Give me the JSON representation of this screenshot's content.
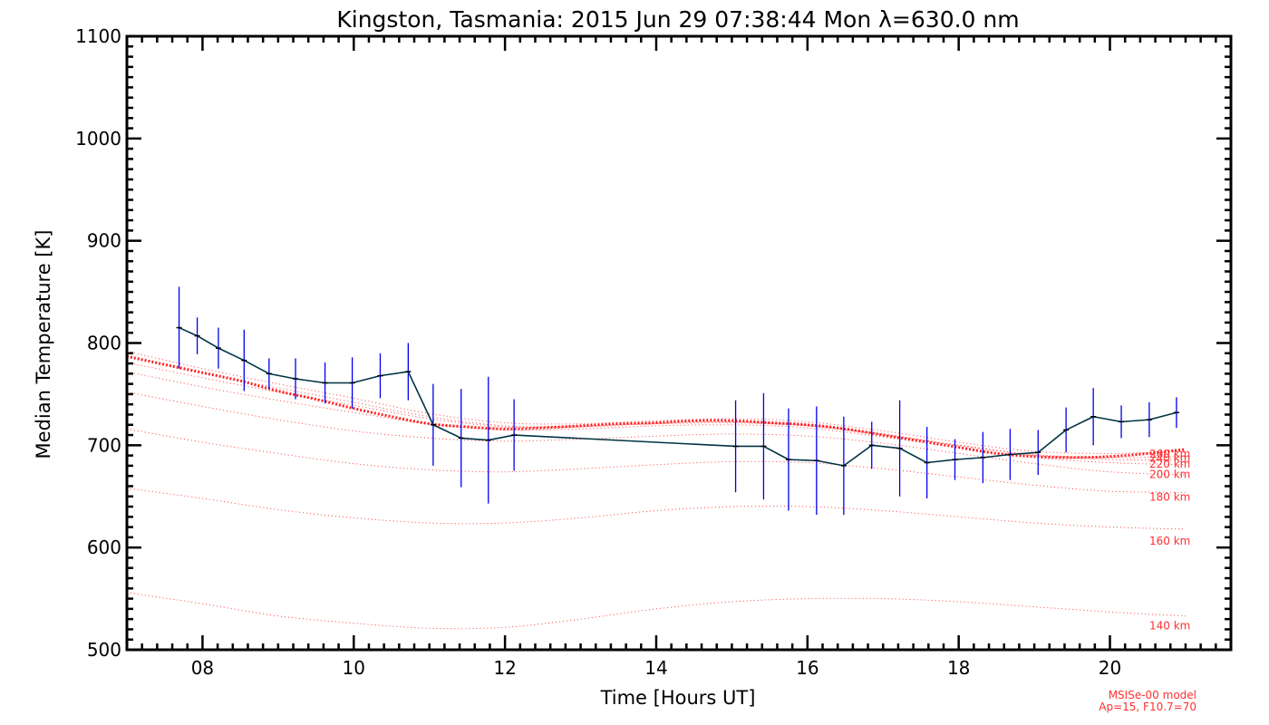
{
  "chart_data": {
    "type": "line",
    "title": "Kingston, Tasmania: 2015 Jun 29 07:38:44 Mon λ=630.0 nm",
    "xlabel": "Time [Hours UT]",
    "ylabel": "Median Temperature [K]",
    "xlim": [
      7.0,
      21.6
    ],
    "ylim": [
      500,
      1100
    ],
    "x_ticks": [
      8,
      10,
      12,
      14,
      16,
      18,
      20
    ],
    "x_tick_labels": [
      "08",
      "10",
      "12",
      "14",
      "16",
      "18",
      "20"
    ],
    "y_ticks": [
      500,
      600,
      700,
      800,
      900,
      1000,
      1100
    ],
    "y_tick_labels": [
      "500",
      "600",
      "700",
      "800",
      "900",
      "1000",
      "1100"
    ],
    "series": [
      {
        "kind": "measurement",
        "color": "#003344",
        "errorbar_color": "#0000ee",
        "points": [
          {
            "x": 7.69,
            "y": 815,
            "err": 40
          },
          {
            "x": 7.93,
            "y": 807,
            "err": 18
          },
          {
            "x": 8.21,
            "y": 795,
            "err": 20
          },
          {
            "x": 8.55,
            "y": 783,
            "err": 30
          },
          {
            "x": 8.88,
            "y": 770,
            "err": 15
          },
          {
            "x": 9.23,
            "y": 765,
            "err": 20
          },
          {
            "x": 9.62,
            "y": 761,
            "err": 20
          },
          {
            "x": 9.98,
            "y": 761,
            "err": 25
          },
          {
            "x": 10.35,
            "y": 768,
            "err": 22
          },
          {
            "x": 10.72,
            "y": 772,
            "err": 28
          },
          {
            "x": 11.05,
            "y": 720,
            "err": 40
          },
          {
            "x": 11.42,
            "y": 707,
            "err": 48
          },
          {
            "x": 11.78,
            "y": 705,
            "err": 62
          },
          {
            "x": 12.12,
            "y": 710,
            "err": 35
          },
          {
            "x": 15.05,
            "y": 699,
            "err": 45
          },
          {
            "x": 15.42,
            "y": 699,
            "err": 52
          },
          {
            "x": 15.75,
            "y": 686,
            "err": 50
          },
          {
            "x": 16.12,
            "y": 685,
            "err": 53
          },
          {
            "x": 16.48,
            "y": 680,
            "err": 48
          },
          {
            "x": 16.85,
            "y": 700,
            "err": 23
          },
          {
            "x": 17.22,
            "y": 697,
            "err": 47
          },
          {
            "x": 17.58,
            "y": 683,
            "err": 35
          },
          {
            "x": 17.95,
            "y": 686,
            "err": 20
          },
          {
            "x": 18.32,
            "y": 688,
            "err": 25
          },
          {
            "x": 18.68,
            "y": 691,
            "err": 25
          },
          {
            "x": 19.05,
            "y": 693,
            "err": 22
          },
          {
            "x": 19.42,
            "y": 715,
            "err": 22
          },
          {
            "x": 19.78,
            "y": 728,
            "err": 28
          },
          {
            "x": 20.15,
            "y": 723,
            "err": 16
          },
          {
            "x": 20.52,
            "y": 725,
            "err": 17
          },
          {
            "x": 20.88,
            "y": 732,
            "err": 15
          }
        ]
      }
    ],
    "model_curves": [
      {
        "label": "140 km",
        "label_y": 520,
        "points": [
          [
            7,
            556
          ],
          [
            8,
            545
          ],
          [
            9,
            533
          ],
          [
            10,
            526
          ],
          [
            11,
            521
          ],
          [
            12,
            522
          ],
          [
            13,
            530
          ],
          [
            14,
            540
          ],
          [
            15,
            547
          ],
          [
            16,
            550
          ],
          [
            17,
            550
          ],
          [
            18,
            547
          ],
          [
            19,
            542
          ],
          [
            20,
            537
          ],
          [
            21,
            533
          ]
        ]
      },
      {
        "label": "160 km",
        "label_y": 603,
        "points": [
          [
            7,
            658
          ],
          [
            8,
            648
          ],
          [
            9,
            637
          ],
          [
            10,
            629
          ],
          [
            11,
            624
          ],
          [
            12,
            624
          ],
          [
            13,
            629
          ],
          [
            14,
            636
          ],
          [
            15,
            640
          ],
          [
            16,
            640
          ],
          [
            17,
            636
          ],
          [
            18,
            630
          ],
          [
            19,
            624
          ],
          [
            20,
            620
          ],
          [
            21,
            618
          ]
        ]
      },
      {
        "label": "180 km",
        "label_y": 646,
        "points": [
          [
            7,
            716
          ],
          [
            8,
            703
          ],
          [
            9,
            692
          ],
          [
            10,
            682
          ],
          [
            11,
            676
          ],
          [
            12,
            674
          ],
          [
            13,
            677
          ],
          [
            14,
            681
          ],
          [
            15,
            684
          ],
          [
            16,
            683
          ],
          [
            17,
            677
          ],
          [
            18,
            669
          ],
          [
            19,
            661
          ],
          [
            20,
            655
          ],
          [
            21,
            654
          ]
        ]
      },
      {
        "label": "200 km",
        "label_y": 668,
        "points": [
          [
            7,
            752
          ],
          [
            8,
            738
          ],
          [
            9,
            725
          ],
          [
            10,
            714
          ],
          [
            11,
            707
          ],
          [
            12,
            704
          ],
          [
            13,
            706
          ],
          [
            14,
            709
          ],
          [
            15,
            711
          ],
          [
            16,
            709
          ],
          [
            17,
            702
          ],
          [
            18,
            692
          ],
          [
            19,
            682
          ],
          [
            20,
            674
          ],
          [
            21,
            671
          ]
        ]
      },
      {
        "label": "220 km",
        "label_y": 678,
        "points": [
          [
            7,
            772
          ],
          [
            8,
            757
          ],
          [
            9,
            744
          ],
          [
            10,
            732
          ],
          [
            11,
            721
          ],
          [
            12,
            715
          ],
          [
            13,
            716
          ],
          [
            14,
            719
          ],
          [
            15,
            720
          ],
          [
            16,
            717
          ],
          [
            17,
            708
          ],
          [
            18,
            698
          ],
          [
            19,
            688
          ],
          [
            20,
            683
          ],
          [
            21,
            681
          ]
        ]
      },
      {
        "label": "240 km",
        "label_y": 684,
        "points": [
          [
            7,
            781
          ],
          [
            8,
            766
          ],
          [
            9,
            752
          ],
          [
            10,
            739
          ],
          [
            11,
            726
          ],
          [
            12,
            718
          ],
          [
            13,
            718
          ],
          [
            14,
            721
          ],
          [
            15,
            722
          ],
          [
            16,
            719
          ],
          [
            17,
            710
          ],
          [
            18,
            700
          ],
          [
            19,
            690
          ],
          [
            20,
            686
          ],
          [
            21,
            686
          ]
        ]
      },
      {
        "label": "260 km",
        "label_y": 688,
        "points": [
          [
            7,
            786
          ],
          [
            8,
            770
          ],
          [
            9,
            756
          ],
          [
            10,
            742
          ],
          [
            11,
            728
          ],
          [
            12,
            719
          ],
          [
            13,
            719
          ],
          [
            14,
            722
          ],
          [
            15,
            723
          ],
          [
            16,
            720
          ],
          [
            17,
            711
          ],
          [
            18,
            700
          ],
          [
            19,
            691
          ],
          [
            20,
            688
          ],
          [
            21,
            689
          ]
        ]
      },
      {
        "label": "",
        "label_y": 0,
        "points": [
          [
            7,
            792
          ],
          [
            8,
            775
          ],
          [
            9,
            760
          ],
          [
            10,
            746
          ],
          [
            11,
            731
          ],
          [
            12,
            722
          ],
          [
            13,
            721
          ],
          [
            14,
            724
          ],
          [
            15,
            726
          ],
          [
            16,
            723
          ],
          [
            17,
            714
          ],
          [
            18,
            703
          ],
          [
            19,
            694
          ],
          [
            20,
            692
          ],
          [
            21,
            694
          ]
        ]
      }
    ],
    "exospheric_curve": {
      "color": "#ff2020",
      "points": [
        [
          7,
          787
        ],
        [
          7.5,
          779
        ],
        [
          8,
          771
        ],
        [
          8.5,
          763
        ],
        [
          9,
          753
        ],
        [
          9.5,
          745
        ],
        [
          10,
          736
        ],
        [
          10.5,
          728
        ],
        [
          11,
          721
        ],
        [
          11.5,
          718
        ],
        [
          12,
          716
        ],
        [
          12.5,
          717
        ],
        [
          13,
          719
        ],
        [
          13.5,
          721
        ],
        [
          14,
          722
        ],
        [
          14.5,
          724
        ],
        [
          15,
          724
        ],
        [
          15.5,
          722
        ],
        [
          16,
          720
        ],
        [
          16.5,
          716
        ],
        [
          17,
          710
        ],
        [
          17.5,
          704
        ],
        [
          18,
          698
        ],
        [
          18.5,
          692
        ],
        [
          19,
          689
        ],
        [
          19.5,
          688
        ],
        [
          20,
          689
        ],
        [
          20.5,
          692
        ],
        [
          21,
          696
        ]
      ]
    },
    "model_note": [
      "MSISe-00 model",
      "Ap=15, F10.7=70"
    ],
    "grid": false,
    "legend": "none"
  }
}
